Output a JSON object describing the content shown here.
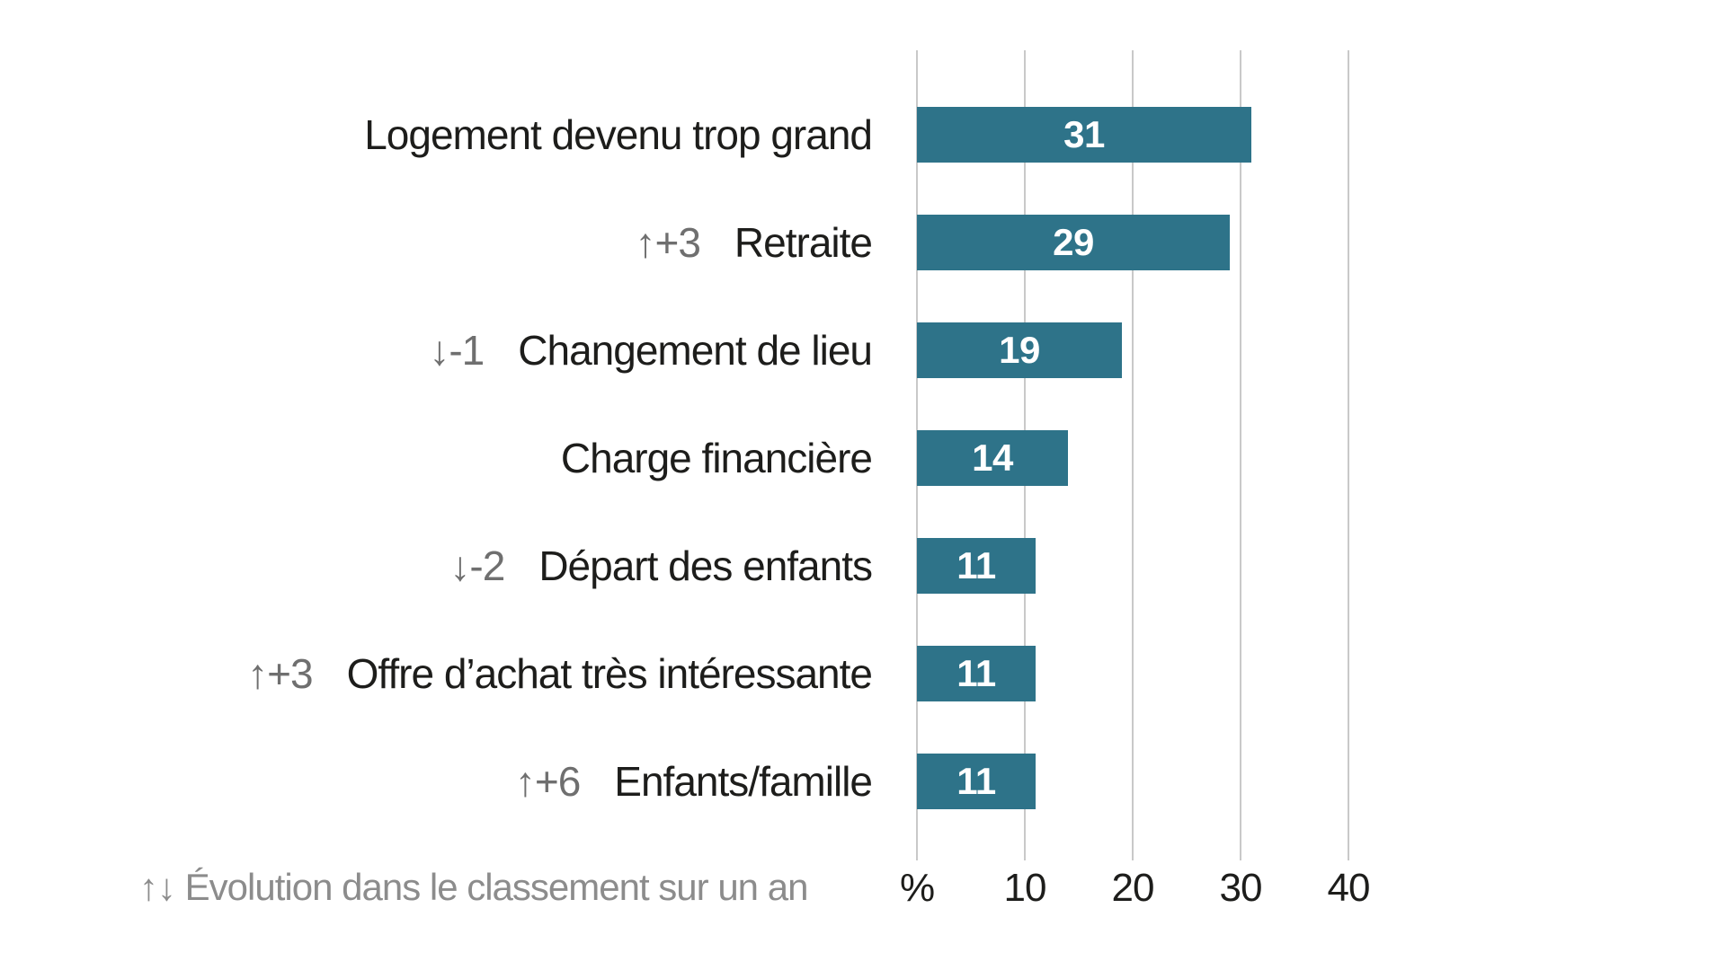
{
  "chart_data": {
    "type": "bar",
    "orientation": "horizontal",
    "unit": "%",
    "categories": [
      "Logement devenu trop grand",
      "Retraite",
      "Changement de lieu",
      "Charge financière",
      "Départ des enfants",
      "Offre d’achat très intéressante",
      "Enfants/famille"
    ],
    "values": [
      31,
      29,
      19,
      14,
      11,
      11,
      11
    ],
    "rank_changes": [
      "",
      "↑+3",
      "↓-1",
      "",
      "↓-2",
      "↑+3",
      "↑+6"
    ],
    "x_ticks": [
      "%",
      "10",
      "20",
      "30",
      "40"
    ],
    "x_tick_values": [
      0,
      10,
      20,
      30,
      40
    ],
    "xlim": [
      0,
      40
    ],
    "grid": "vertical",
    "legend_position": "none",
    "footnote": "↑↓ Évolution dans le classement sur un an",
    "colors": {
      "bar": "#2e7389",
      "value_label": "#ffffff",
      "category_label": "#1d1d1b",
      "rank_change": "#6f6f6f",
      "gridline": "#c9c9c9",
      "axis_label": "#1d1d1b",
      "footnote": "#8c8c8c"
    }
  }
}
